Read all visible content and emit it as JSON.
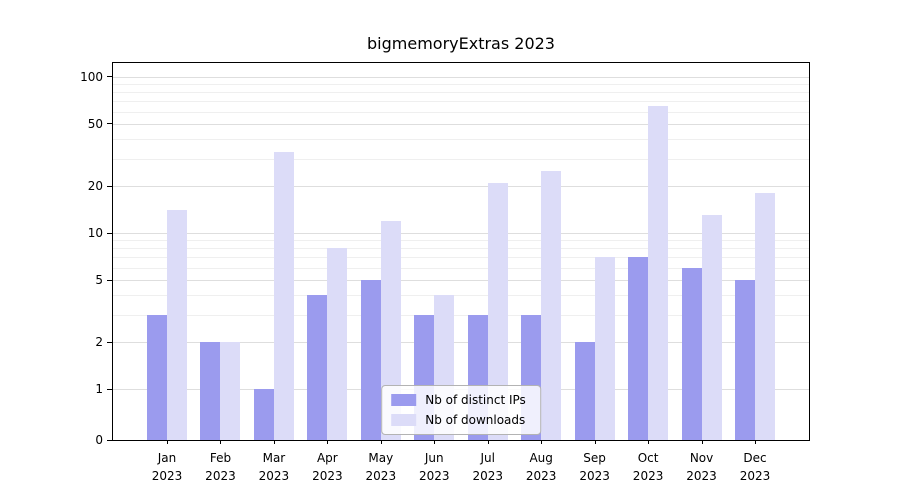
{
  "title": "bigmemoryExtras 2023",
  "chart_data": {
    "type": "bar",
    "title": "bigmemoryExtras 2023",
    "scale": "log",
    "grid": true,
    "legend_position": "lower center",
    "categories": [
      "Jan 2023",
      "Feb 2023",
      "Mar 2023",
      "Apr 2023",
      "May 2023",
      "Jun 2023",
      "Jul 2023",
      "Aug 2023",
      "Sep 2023",
      "Oct 2023",
      "Nov 2023",
      "Dec 2023"
    ],
    "series": [
      {
        "name": "Nb of distinct IPs",
        "color": "#9b9bee",
        "values": [
          3,
          2,
          1,
          4,
          5,
          3,
          3,
          3,
          2,
          7,
          6,
          5
        ]
      },
      {
        "name": "Nb of downloads",
        "color": "#dcdcf8",
        "values": [
          14,
          2,
          33,
          8,
          12,
          4,
          21,
          25,
          7,
          65,
          13,
          18
        ]
      }
    ],
    "yticks": [
      0,
      1,
      2,
      5,
      10,
      20,
      50,
      100
    ],
    "gridlines": {
      "major": [
        1,
        2,
        5,
        10,
        20,
        50,
        100
      ],
      "minor": [
        3,
        4,
        6,
        7,
        8,
        9,
        30,
        40,
        60,
        70,
        80,
        90
      ]
    },
    "ylim": [
      0,
      120
    ],
    "xlabel": "",
    "ylabel": ""
  }
}
